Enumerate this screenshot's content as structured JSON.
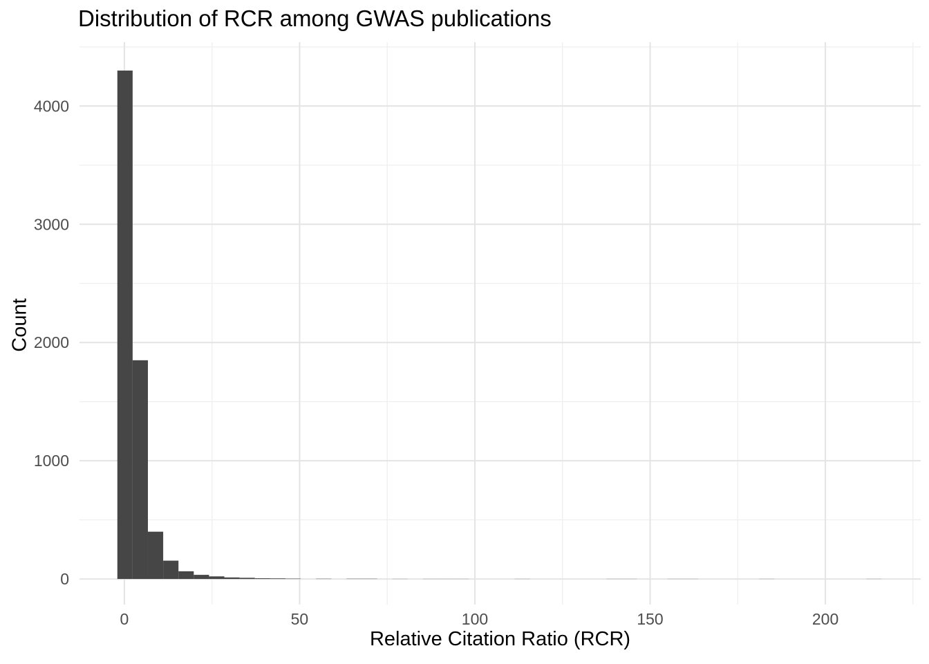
{
  "figure": {
    "background": "#FFFFFF"
  },
  "chart_data": {
    "type": "bar",
    "subtype": "histogram",
    "title": "Distribution of RCR among GWAS publications",
    "xlabel": "Relative Citation Ratio (RCR)",
    "ylabel": "Count",
    "legend": "none",
    "grid": true,
    "x_ticks": [
      0,
      50,
      100,
      150,
      200
    ],
    "x_minor_gridlines": [
      25,
      75,
      125,
      175,
      225
    ],
    "y_ticks": [
      0,
      1000,
      2000,
      3000,
      4000
    ],
    "y_minor_gridlines": [
      500,
      1500,
      2500,
      3500,
      4500
    ],
    "xlim": [
      -12.8,
      227.2
    ],
    "ylim": [
      -216,
      4540
    ],
    "bin_start": -2.0,
    "bin_width": 4.36,
    "bin_counts": [
      4300,
      1850,
      400,
      155,
      65,
      35,
      22,
      13,
      10,
      6,
      5,
      3,
      0,
      2,
      0,
      2,
      2,
      0,
      1,
      0,
      1,
      1,
      1,
      0,
      0,
      0,
      1,
      0,
      0,
      0,
      0,
      0,
      1,
      1,
      0,
      0,
      1,
      1,
      0,
      0,
      0,
      0,
      1,
      0,
      0,
      0,
      0,
      0,
      0,
      1
    ],
    "colors": {
      "bar": "#464646",
      "grid_major": "#E4E4E4",
      "grid_minor": "#F0F0F0",
      "tick_label": "#4D4D4D",
      "title": "#000000",
      "axis_title": "#000000",
      "background": "#FFFFFF"
    }
  }
}
